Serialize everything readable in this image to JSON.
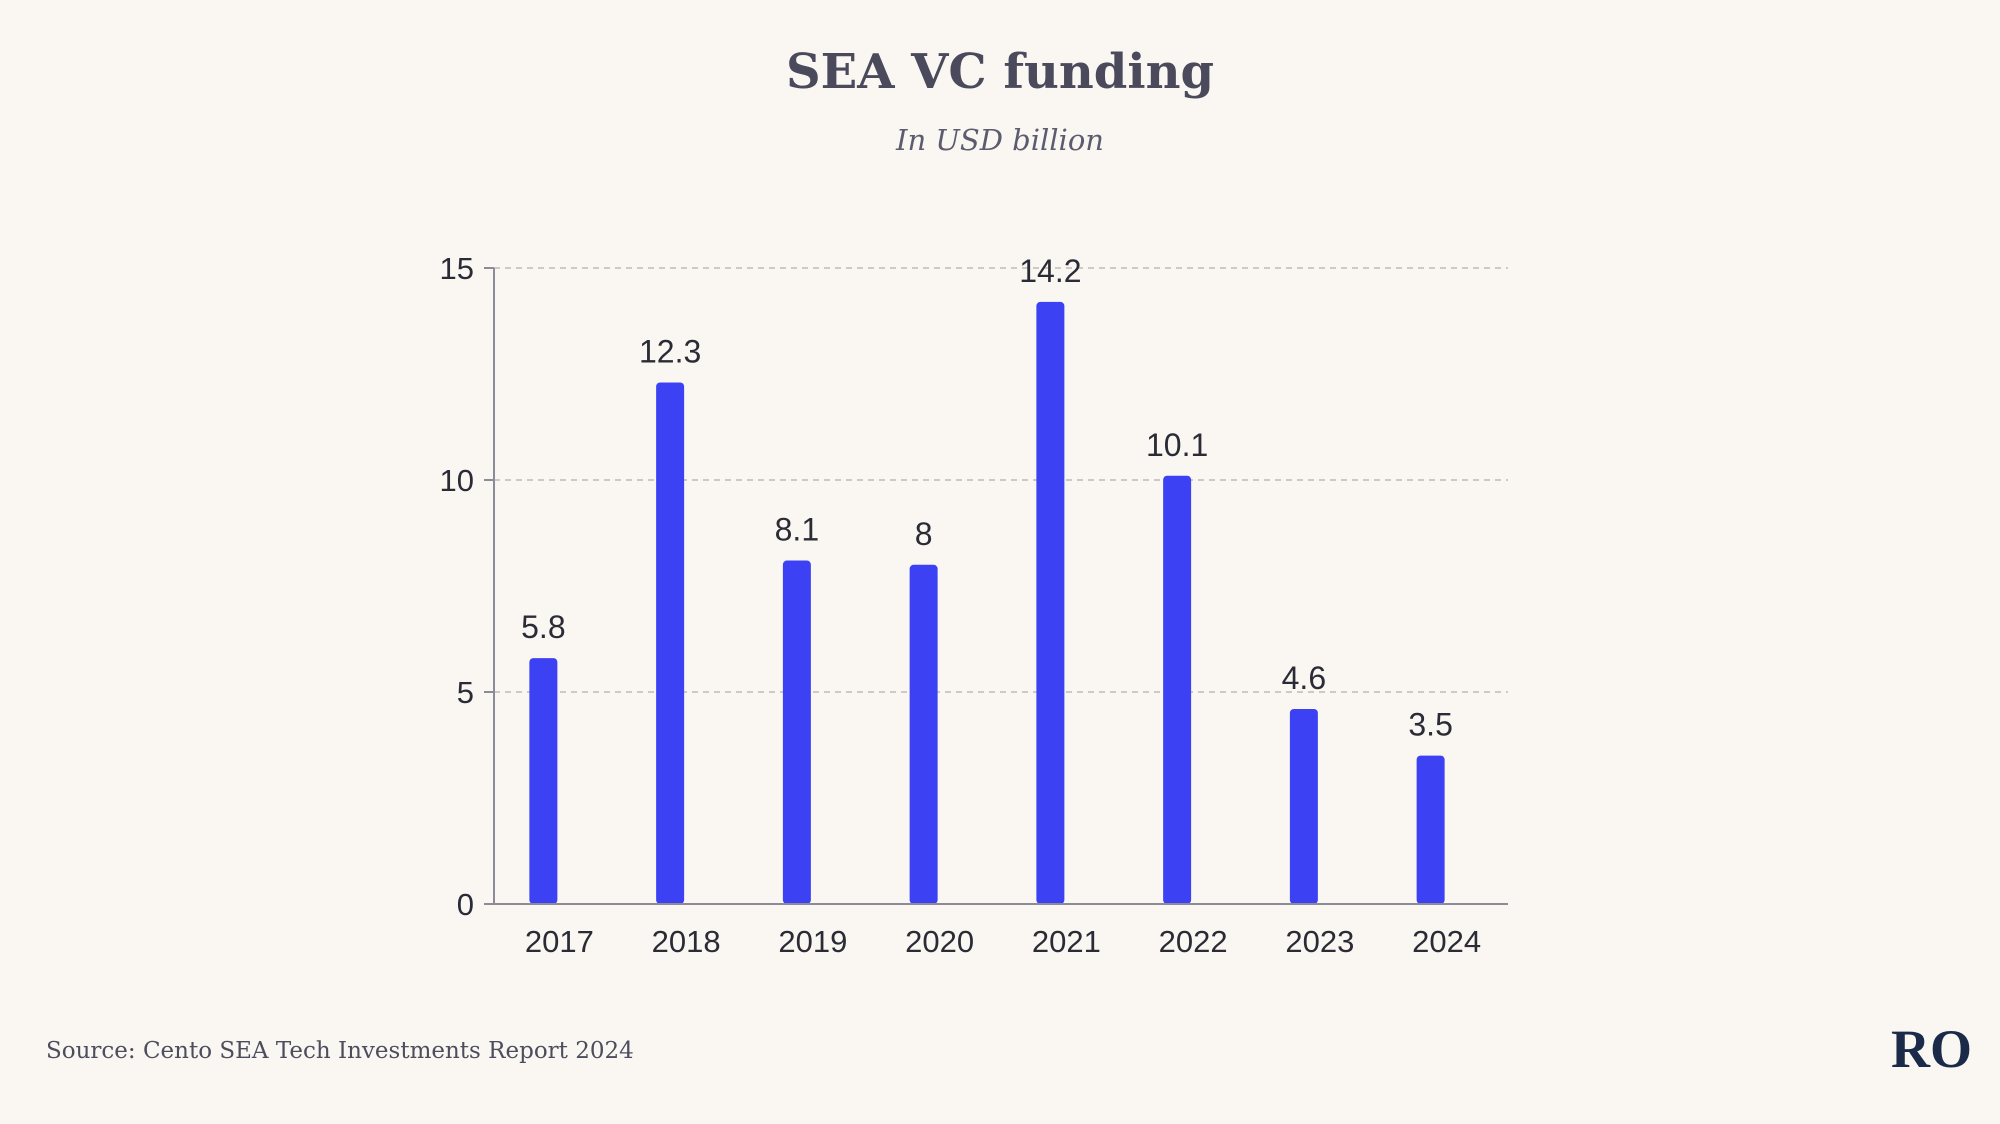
{
  "colors": {
    "background": "#faf7f3",
    "bar": "#3c41f4",
    "grid": "#cfc9c4",
    "axis": "#8c8c96"
  },
  "chart_data": {
    "type": "bar",
    "title": "SEA VC funding",
    "subtitle": "In USD billion",
    "categories": [
      "2017",
      "2018",
      "2019",
      "2020",
      "2021",
      "2022",
      "2023",
      "2024"
    ],
    "values": [
      5.8,
      12.3,
      8.1,
      8,
      14.2,
      10.1,
      4.6,
      3.5
    ],
    "value_labels": [
      "5.8",
      "12.3",
      "8.1",
      "8",
      "14.2",
      "10.1",
      "4.6",
      "3.5"
    ],
    "ylim": [
      0,
      15
    ],
    "yticks": [
      0,
      5,
      10,
      15
    ],
    "ytick_labels": [
      "0",
      "5",
      "10",
      "15"
    ],
    "xlabel": "",
    "ylabel": "",
    "grid": true,
    "legend": "none"
  },
  "footer": {
    "source": "Source: Cento SEA Tech Investments Report 2024",
    "logo": "RO"
  }
}
